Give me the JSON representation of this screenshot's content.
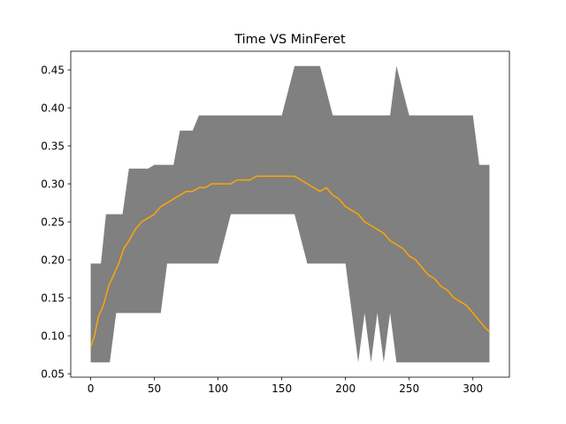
{
  "chart_data": {
    "type": "area",
    "title": "Time VS MinFeret",
    "xlabel": "",
    "ylabel": "",
    "xlim": [
      -15.65,
      328.65
    ],
    "ylim": [
      0.0455,
      0.4745
    ],
    "xticks": [
      0,
      50,
      100,
      150,
      200,
      250,
      300
    ],
    "xtick_labels": [
      "0",
      "50",
      "100",
      "150",
      "200",
      "250",
      "300"
    ],
    "yticks": [
      0.05,
      0.1,
      0.15,
      0.2,
      0.25,
      0.3,
      0.35,
      0.4,
      0.45
    ],
    "ytick_labels": [
      "0.05",
      "0.10",
      "0.15",
      "0.20",
      "0.25",
      "0.30",
      "0.35",
      "0.40",
      "0.45"
    ],
    "grid": false,
    "colors": {
      "band": "#808080",
      "mean": "#ffa500",
      "axes": "#000000"
    },
    "band_x": [
      0,
      2,
      5,
      8,
      12,
      15,
      20,
      25,
      30,
      35,
      40,
      45,
      50,
      55,
      60,
      65,
      70,
      75,
      80,
      85,
      90,
      95,
      100,
      110,
      120,
      130,
      140,
      150,
      160,
      170,
      180,
      190,
      200,
      205,
      210,
      215,
      220,
      225,
      230,
      235,
      240,
      250,
      260,
      270,
      280,
      290,
      300,
      305,
      310,
      313
    ],
    "band_upper": [
      0.195,
      0.195,
      0.195,
      0.195,
      0.26,
      0.26,
      0.26,
      0.26,
      0.32,
      0.32,
      0.32,
      0.32,
      0.325,
      0.325,
      0.325,
      0.325,
      0.37,
      0.37,
      0.37,
      0.39,
      0.39,
      0.39,
      0.39,
      0.39,
      0.39,
      0.39,
      0.39,
      0.39,
      0.455,
      0.455,
      0.455,
      0.39,
      0.39,
      0.39,
      0.39,
      0.39,
      0.39,
      0.39,
      0.39,
      0.39,
      0.455,
      0.39,
      0.39,
      0.39,
      0.39,
      0.39,
      0.39,
      0.325,
      0.325,
      0.325
    ],
    "band_lower": [
      0.065,
      0.065,
      0.065,
      0.065,
      0.065,
      0.065,
      0.13,
      0.13,
      0.13,
      0.13,
      0.13,
      0.13,
      0.13,
      0.13,
      0.195,
      0.195,
      0.195,
      0.195,
      0.195,
      0.195,
      0.195,
      0.195,
      0.195,
      0.26,
      0.26,
      0.26,
      0.26,
      0.26,
      0.26,
      0.195,
      0.195,
      0.195,
      0.195,
      0.13,
      0.065,
      0.13,
      0.065,
      0.13,
      0.065,
      0.13,
      0.065,
      0.065,
      0.065,
      0.065,
      0.065,
      0.065,
      0.065,
      0.065,
      0.065,
      0.065
    ],
    "series": [
      {
        "x": [
          0,
          3,
          6,
          10,
          14,
          18,
          22,
          26,
          30,
          35,
          40,
          45,
          50,
          55,
          60,
          65,
          70,
          75,
          80,
          85,
          90,
          95,
          100,
          105,
          110,
          115,
          120,
          125,
          130,
          135,
          140,
          145,
          150,
          155,
          160,
          165,
          170,
          175,
          180,
          185,
          190,
          195,
          200,
          205,
          210,
          215,
          220,
          225,
          230,
          235,
          240,
          245,
          250,
          255,
          260,
          265,
          270,
          275,
          280,
          285,
          290,
          295,
          300,
          305,
          310,
          313
        ],
        "y": [
          0.085,
          0.1,
          0.125,
          0.14,
          0.165,
          0.18,
          0.195,
          0.215,
          0.225,
          0.24,
          0.25,
          0.255,
          0.26,
          0.27,
          0.275,
          0.28,
          0.285,
          0.29,
          0.29,
          0.295,
          0.295,
          0.3,
          0.3,
          0.3,
          0.3,
          0.305,
          0.305,
          0.305,
          0.31,
          0.31,
          0.31,
          0.31,
          0.31,
          0.31,
          0.31,
          0.305,
          0.3,
          0.295,
          0.29,
          0.295,
          0.285,
          0.28,
          0.27,
          0.265,
          0.26,
          0.25,
          0.245,
          0.24,
          0.235,
          0.225,
          0.22,
          0.215,
          0.205,
          0.2,
          0.19,
          0.18,
          0.175,
          0.165,
          0.16,
          0.15,
          0.145,
          0.14,
          0.13,
          0.12,
          0.11,
          0.105
        ]
      }
    ]
  }
}
